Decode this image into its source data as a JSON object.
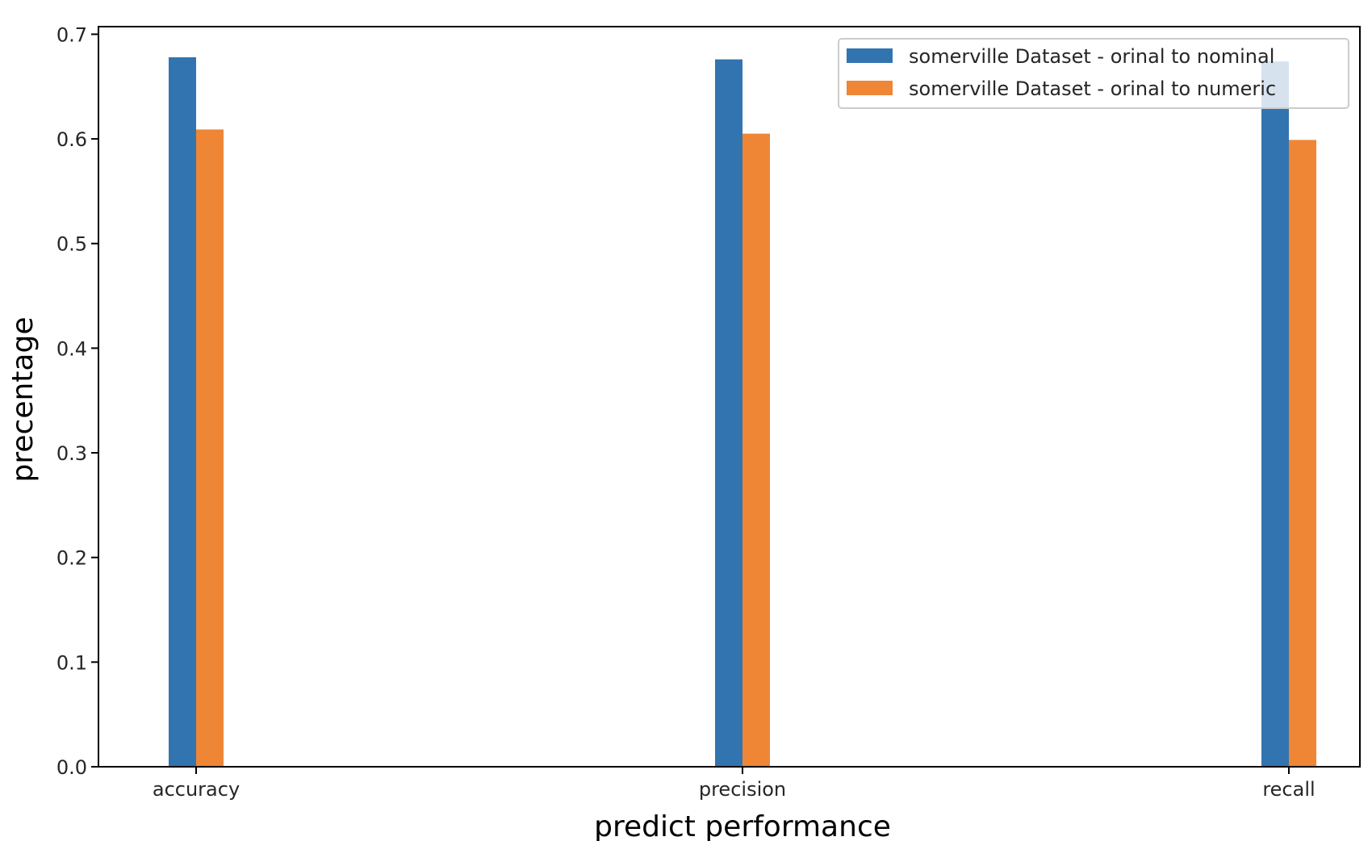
{
  "chart_data": {
    "type": "bar",
    "title": "",
    "xlabel": "predict performance",
    "ylabel": "precentage",
    "categories": [
      "accuracy",
      "precision",
      "recall"
    ],
    "series": [
      {
        "name": "somerville Dataset - orinal to nominal",
        "color": "#3274b0",
        "values": [
          0.678,
          0.676,
          0.674
        ]
      },
      {
        "name": "somerville Dataset - orinal to numeric",
        "color": "#ee8635",
        "values": [
          0.609,
          0.605,
          0.599
        ]
      }
    ],
    "ylim": [
      0,
      0.7
    ],
    "yticks": [
      "0.0",
      "0.1",
      "0.2",
      "0.3",
      "0.4",
      "0.5",
      "0.6",
      "0.7"
    ],
    "grid": false,
    "legend_position": "top-right"
  }
}
